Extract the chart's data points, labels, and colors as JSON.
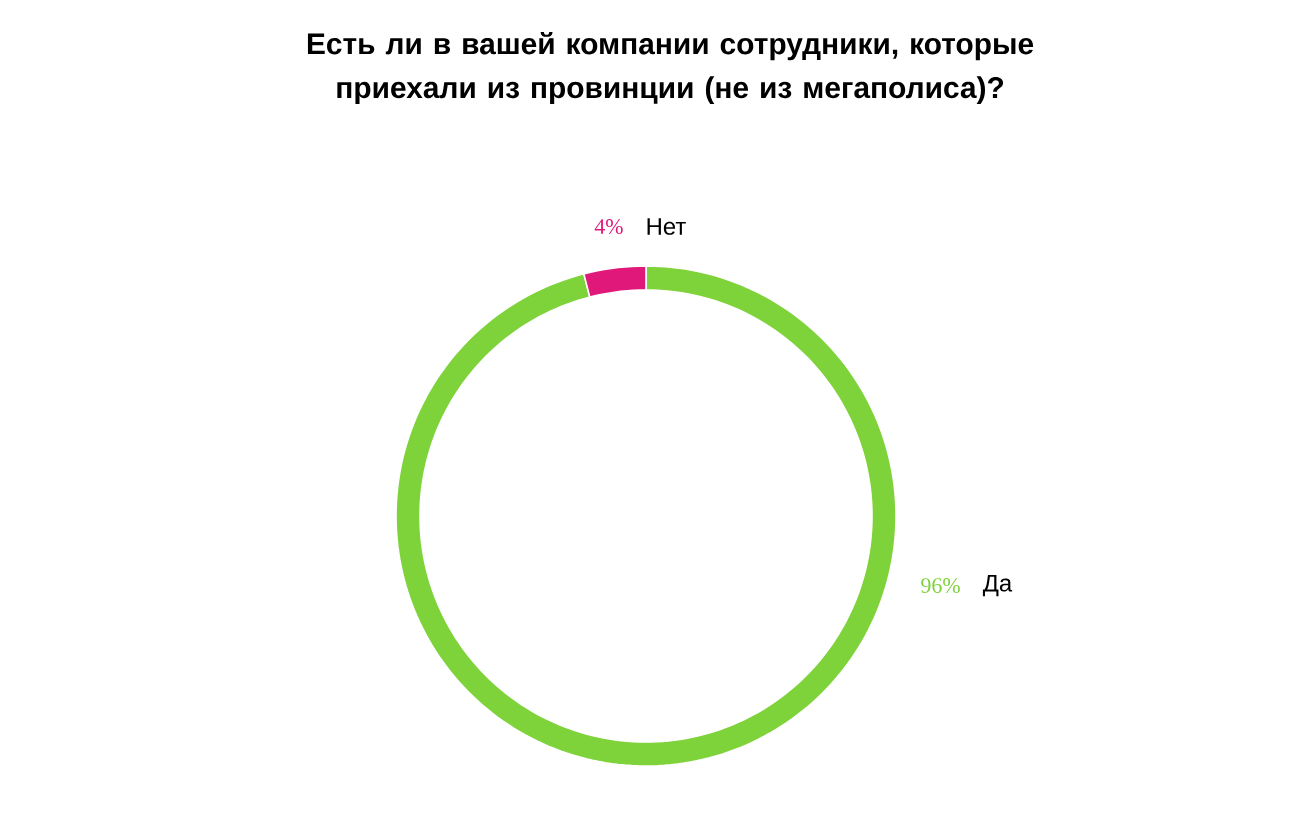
{
  "chart_data": {
    "type": "donut",
    "title": "Есть ли в вашей компании сотрудники, которые приехали из провинции (не из мегаполиса)?",
    "categories": [
      "Да",
      "Нет"
    ],
    "values": [
      96,
      4
    ],
    "colors": [
      "#7ed23a",
      "#e0187a"
    ],
    "value_labels": [
      "96%",
      "4%"
    ]
  }
}
